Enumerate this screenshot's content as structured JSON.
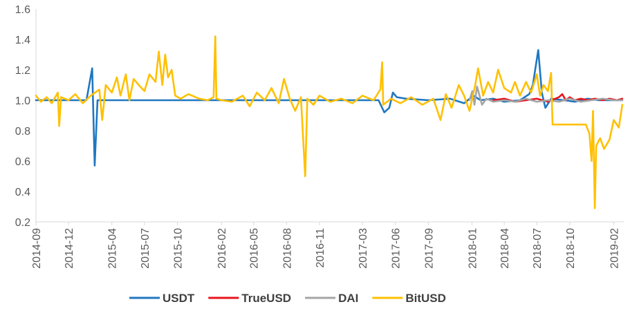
{
  "chart_data": {
    "type": "line",
    "title": "",
    "xlabel": "",
    "ylabel": "",
    "ylim": [
      0.2,
      1.6
    ],
    "yticks": [
      "0.2",
      "0.4",
      "0.6",
      "0.8",
      "1.0",
      "1.2",
      "1.4",
      "1.6"
    ],
    "xlim": [
      "2014-09",
      "2019-03"
    ],
    "xticks": [
      "2014-09",
      "2014-12",
      "2015-04",
      "2015-07",
      "2015-10",
      "2016-02",
      "2016-05",
      "2016-08",
      "2016-11",
      "2017-03",
      "2017-06",
      "2017-09",
      "2018-01",
      "2018-04",
      "2018-07",
      "2018-10",
      "2019-02"
    ],
    "grid": false,
    "legend_position": "bottom",
    "series": [
      {
        "name": "USDT",
        "color": "#1F77C0",
        "points": [
          [
            "2014-09-01",
            1.0
          ],
          [
            "2014-12-20",
            1.0
          ],
          [
            "2015-01-20",
            1.0
          ],
          [
            "2015-02-05",
            1.21
          ],
          [
            "2015-02-12",
            0.57
          ],
          [
            "2015-02-20",
            1.0
          ],
          [
            "2015-07-01",
            1.0
          ],
          [
            "2016-01-01",
            1.0
          ],
          [
            "2016-06-01",
            1.0
          ],
          [
            "2016-11-01",
            1.0
          ],
          [
            "2017-03-01",
            1.0
          ],
          [
            "2017-04-15",
            1.0
          ],
          [
            "2017-05-01",
            0.92
          ],
          [
            "2017-05-15",
            0.95
          ],
          [
            "2017-05-25",
            1.05
          ],
          [
            "2017-06-05",
            1.02
          ],
          [
            "2017-07-01",
            1.01
          ],
          [
            "2017-09-01",
            1.0
          ],
          [
            "2017-11-01",
            1.01
          ],
          [
            "2017-12-10",
            0.98
          ],
          [
            "2018-01-05",
            1.03
          ],
          [
            "2018-01-25",
            1.0
          ],
          [
            "2018-03-01",
            1.01
          ],
          [
            "2018-04-01",
            0.99
          ],
          [
            "2018-05-15",
            1.0
          ],
          [
            "2018-06-10",
            1.04
          ],
          [
            "2018-06-20",
            1.1
          ],
          [
            "2018-07-05",
            1.33
          ],
          [
            "2018-07-15",
            1.05
          ],
          [
            "2018-07-25",
            0.95
          ],
          [
            "2018-08-10",
            1.01
          ],
          [
            "2018-09-15",
            1.0
          ],
          [
            "2018-10-15",
            0.99
          ],
          [
            "2018-11-20",
            1.01
          ],
          [
            "2018-12-20",
            1.0
          ],
          [
            "2019-01-20",
            1.0
          ],
          [
            "2019-02-25",
            1.0
          ]
        ]
      },
      {
        "name": "TrueUSD",
        "color": "#E8141B",
        "points": [
          [
            "2018-03-01",
            1.0
          ],
          [
            "2018-04-01",
            1.01
          ],
          [
            "2018-05-01",
            0.99
          ],
          [
            "2018-06-01",
            1.0
          ],
          [
            "2018-07-01",
            1.01
          ],
          [
            "2018-08-01",
            0.99
          ],
          [
            "2018-09-01",
            1.02
          ],
          [
            "2018-09-10",
            1.04
          ],
          [
            "2018-09-20",
            1.0
          ],
          [
            "2018-10-01",
            1.02
          ],
          [
            "2018-10-15",
            1.0
          ],
          [
            "2018-11-01",
            1.01
          ],
          [
            "2018-11-20",
            1.0
          ],
          [
            "2018-12-10",
            1.01
          ],
          [
            "2019-01-01",
            1.0
          ],
          [
            "2019-01-20",
            1.01
          ],
          [
            "2019-02-10",
            1.0
          ],
          [
            "2019-02-25",
            1.01
          ]
        ]
      },
      {
        "name": "DAI",
        "color": "#A5A5A5",
        "points": [
          [
            "2017-12-25",
            1.0
          ],
          [
            "2018-01-02",
            1.06
          ],
          [
            "2018-01-08",
            0.97
          ],
          [
            "2018-01-15",
            1.09
          ],
          [
            "2018-01-22",
            1.03
          ],
          [
            "2018-01-29",
            0.97
          ],
          [
            "2018-02-10",
            1.01
          ],
          [
            "2018-03-01",
            0.99
          ],
          [
            "2018-04-01",
            1.0
          ],
          [
            "2018-05-01",
            0.99
          ],
          [
            "2018-06-01",
            1.01
          ],
          [
            "2018-07-01",
            0.99
          ],
          [
            "2018-08-01",
            1.0
          ],
          [
            "2018-09-01",
            0.99
          ],
          [
            "2018-10-01",
            1.01
          ],
          [
            "2018-11-01",
            0.99
          ],
          [
            "2018-12-01",
            1.0
          ],
          [
            "2019-01-01",
            1.01
          ],
          [
            "2019-02-01",
            1.0
          ],
          [
            "2019-02-25",
            1.0
          ]
        ]
      },
      {
        "name": "BitUSD",
        "color": "#FFC000",
        "points": [
          [
            "2014-09-01",
            1.03
          ],
          [
            "2014-09-15",
            0.99
          ],
          [
            "2014-10-01",
            1.02
          ],
          [
            "2014-10-15",
            0.98
          ],
          [
            "2014-11-01",
            1.05
          ],
          [
            "2014-11-05",
            0.83
          ],
          [
            "2014-11-10",
            1.02
          ],
          [
            "2014-12-01",
            1.0
          ],
          [
            "2014-12-20",
            1.04
          ],
          [
            "2015-01-10",
            0.98
          ],
          [
            "2015-02-01",
            1.03
          ],
          [
            "2015-02-25",
            1.07
          ],
          [
            "2015-03-05",
            0.87
          ],
          [
            "2015-03-15",
            1.1
          ],
          [
            "2015-04-01",
            1.05
          ],
          [
            "2015-04-15",
            1.15
          ],
          [
            "2015-04-25",
            1.03
          ],
          [
            "2015-05-10",
            1.17
          ],
          [
            "2015-05-20",
            1.0
          ],
          [
            "2015-06-01",
            1.14
          ],
          [
            "2015-06-15",
            1.1
          ],
          [
            "2015-07-01",
            1.06
          ],
          [
            "2015-07-15",
            1.17
          ],
          [
            "2015-08-01",
            1.12
          ],
          [
            "2015-08-10",
            1.32
          ],
          [
            "2015-08-20",
            1.1
          ],
          [
            "2015-08-28",
            1.3
          ],
          [
            "2015-09-05",
            1.15
          ],
          [
            "2015-09-15",
            1.2
          ],
          [
            "2015-09-25",
            1.03
          ],
          [
            "2015-10-10",
            1.01
          ],
          [
            "2015-11-01",
            1.04
          ],
          [
            "2015-12-01",
            1.01
          ],
          [
            "2015-12-25",
            1.0
          ],
          [
            "2016-01-10",
            1.02
          ],
          [
            "2016-01-15",
            1.42
          ],
          [
            "2016-01-18",
            1.01
          ],
          [
            "2016-02-01",
            1.0
          ],
          [
            "2016-03-01",
            0.99
          ],
          [
            "2016-04-01",
            1.03
          ],
          [
            "2016-04-20",
            0.96
          ],
          [
            "2016-05-10",
            1.05
          ],
          [
            "2016-06-01",
            1.0
          ],
          [
            "2016-06-20",
            1.08
          ],
          [
            "2016-07-10",
            0.98
          ],
          [
            "2016-07-25",
            1.14
          ],
          [
            "2016-08-10",
            1.01
          ],
          [
            "2016-08-25",
            0.93
          ],
          [
            "2016-09-10",
            1.02
          ],
          [
            "2016-09-22",
            0.5
          ],
          [
            "2016-09-28",
            1.01
          ],
          [
            "2016-10-15",
            0.97
          ],
          [
            "2016-11-01",
            1.03
          ],
          [
            "2016-12-01",
            0.99
          ],
          [
            "2017-01-01",
            1.01
          ],
          [
            "2017-02-01",
            0.98
          ],
          [
            "2017-03-01",
            1.03
          ],
          [
            "2017-04-01",
            1.0
          ],
          [
            "2017-04-20",
            1.07
          ],
          [
            "2017-04-25",
            1.25
          ],
          [
            "2017-04-28",
            0.97
          ],
          [
            "2017-05-20",
            1.01
          ],
          [
            "2017-06-15",
            0.98
          ],
          [
            "2017-07-15",
            1.02
          ],
          [
            "2017-08-15",
            0.97
          ],
          [
            "2017-09-15",
            1.01
          ],
          [
            "2017-10-05",
            0.87
          ],
          [
            "2017-10-20",
            1.04
          ],
          [
            "2017-11-05",
            0.95
          ],
          [
            "2017-11-25",
            1.1
          ],
          [
            "2017-12-10",
            1.03
          ],
          [
            "2017-12-25",
            0.93
          ],
          [
            "2018-01-10",
            1.1
          ],
          [
            "2018-01-18",
            1.21
          ],
          [
            "2018-02-01",
            1.03
          ],
          [
            "2018-02-15",
            1.12
          ],
          [
            "2018-03-01",
            1.05
          ],
          [
            "2018-03-15",
            1.2
          ],
          [
            "2018-04-01",
            1.08
          ],
          [
            "2018-04-20",
            1.05
          ],
          [
            "2018-05-01",
            1.12
          ],
          [
            "2018-05-15",
            1.03
          ],
          [
            "2018-06-01",
            1.12
          ],
          [
            "2018-06-15",
            1.05
          ],
          [
            "2018-07-01",
            1.17
          ],
          [
            "2018-07-10",
            1.03
          ],
          [
            "2018-07-20",
            1.1
          ],
          [
            "2018-08-01",
            1.06
          ],
          [
            "2018-08-10",
            1.18
          ],
          [
            "2018-08-14",
            0.84
          ],
          [
            "2018-10-01",
            0.84
          ],
          [
            "2018-11-15",
            0.84
          ],
          [
            "2018-11-25",
            0.78
          ],
          [
            "2018-12-01",
            0.6
          ],
          [
            "2018-12-05",
            0.93
          ],
          [
            "2018-12-10",
            0.29
          ],
          [
            "2018-12-14",
            0.7
          ],
          [
            "2018-12-25",
            0.75
          ],
          [
            "2019-01-05",
            0.68
          ],
          [
            "2019-01-20",
            0.74
          ],
          [
            "2019-02-01",
            0.87
          ],
          [
            "2019-02-15",
            0.82
          ],
          [
            "2019-02-25",
            0.97
          ]
        ]
      }
    ]
  }
}
